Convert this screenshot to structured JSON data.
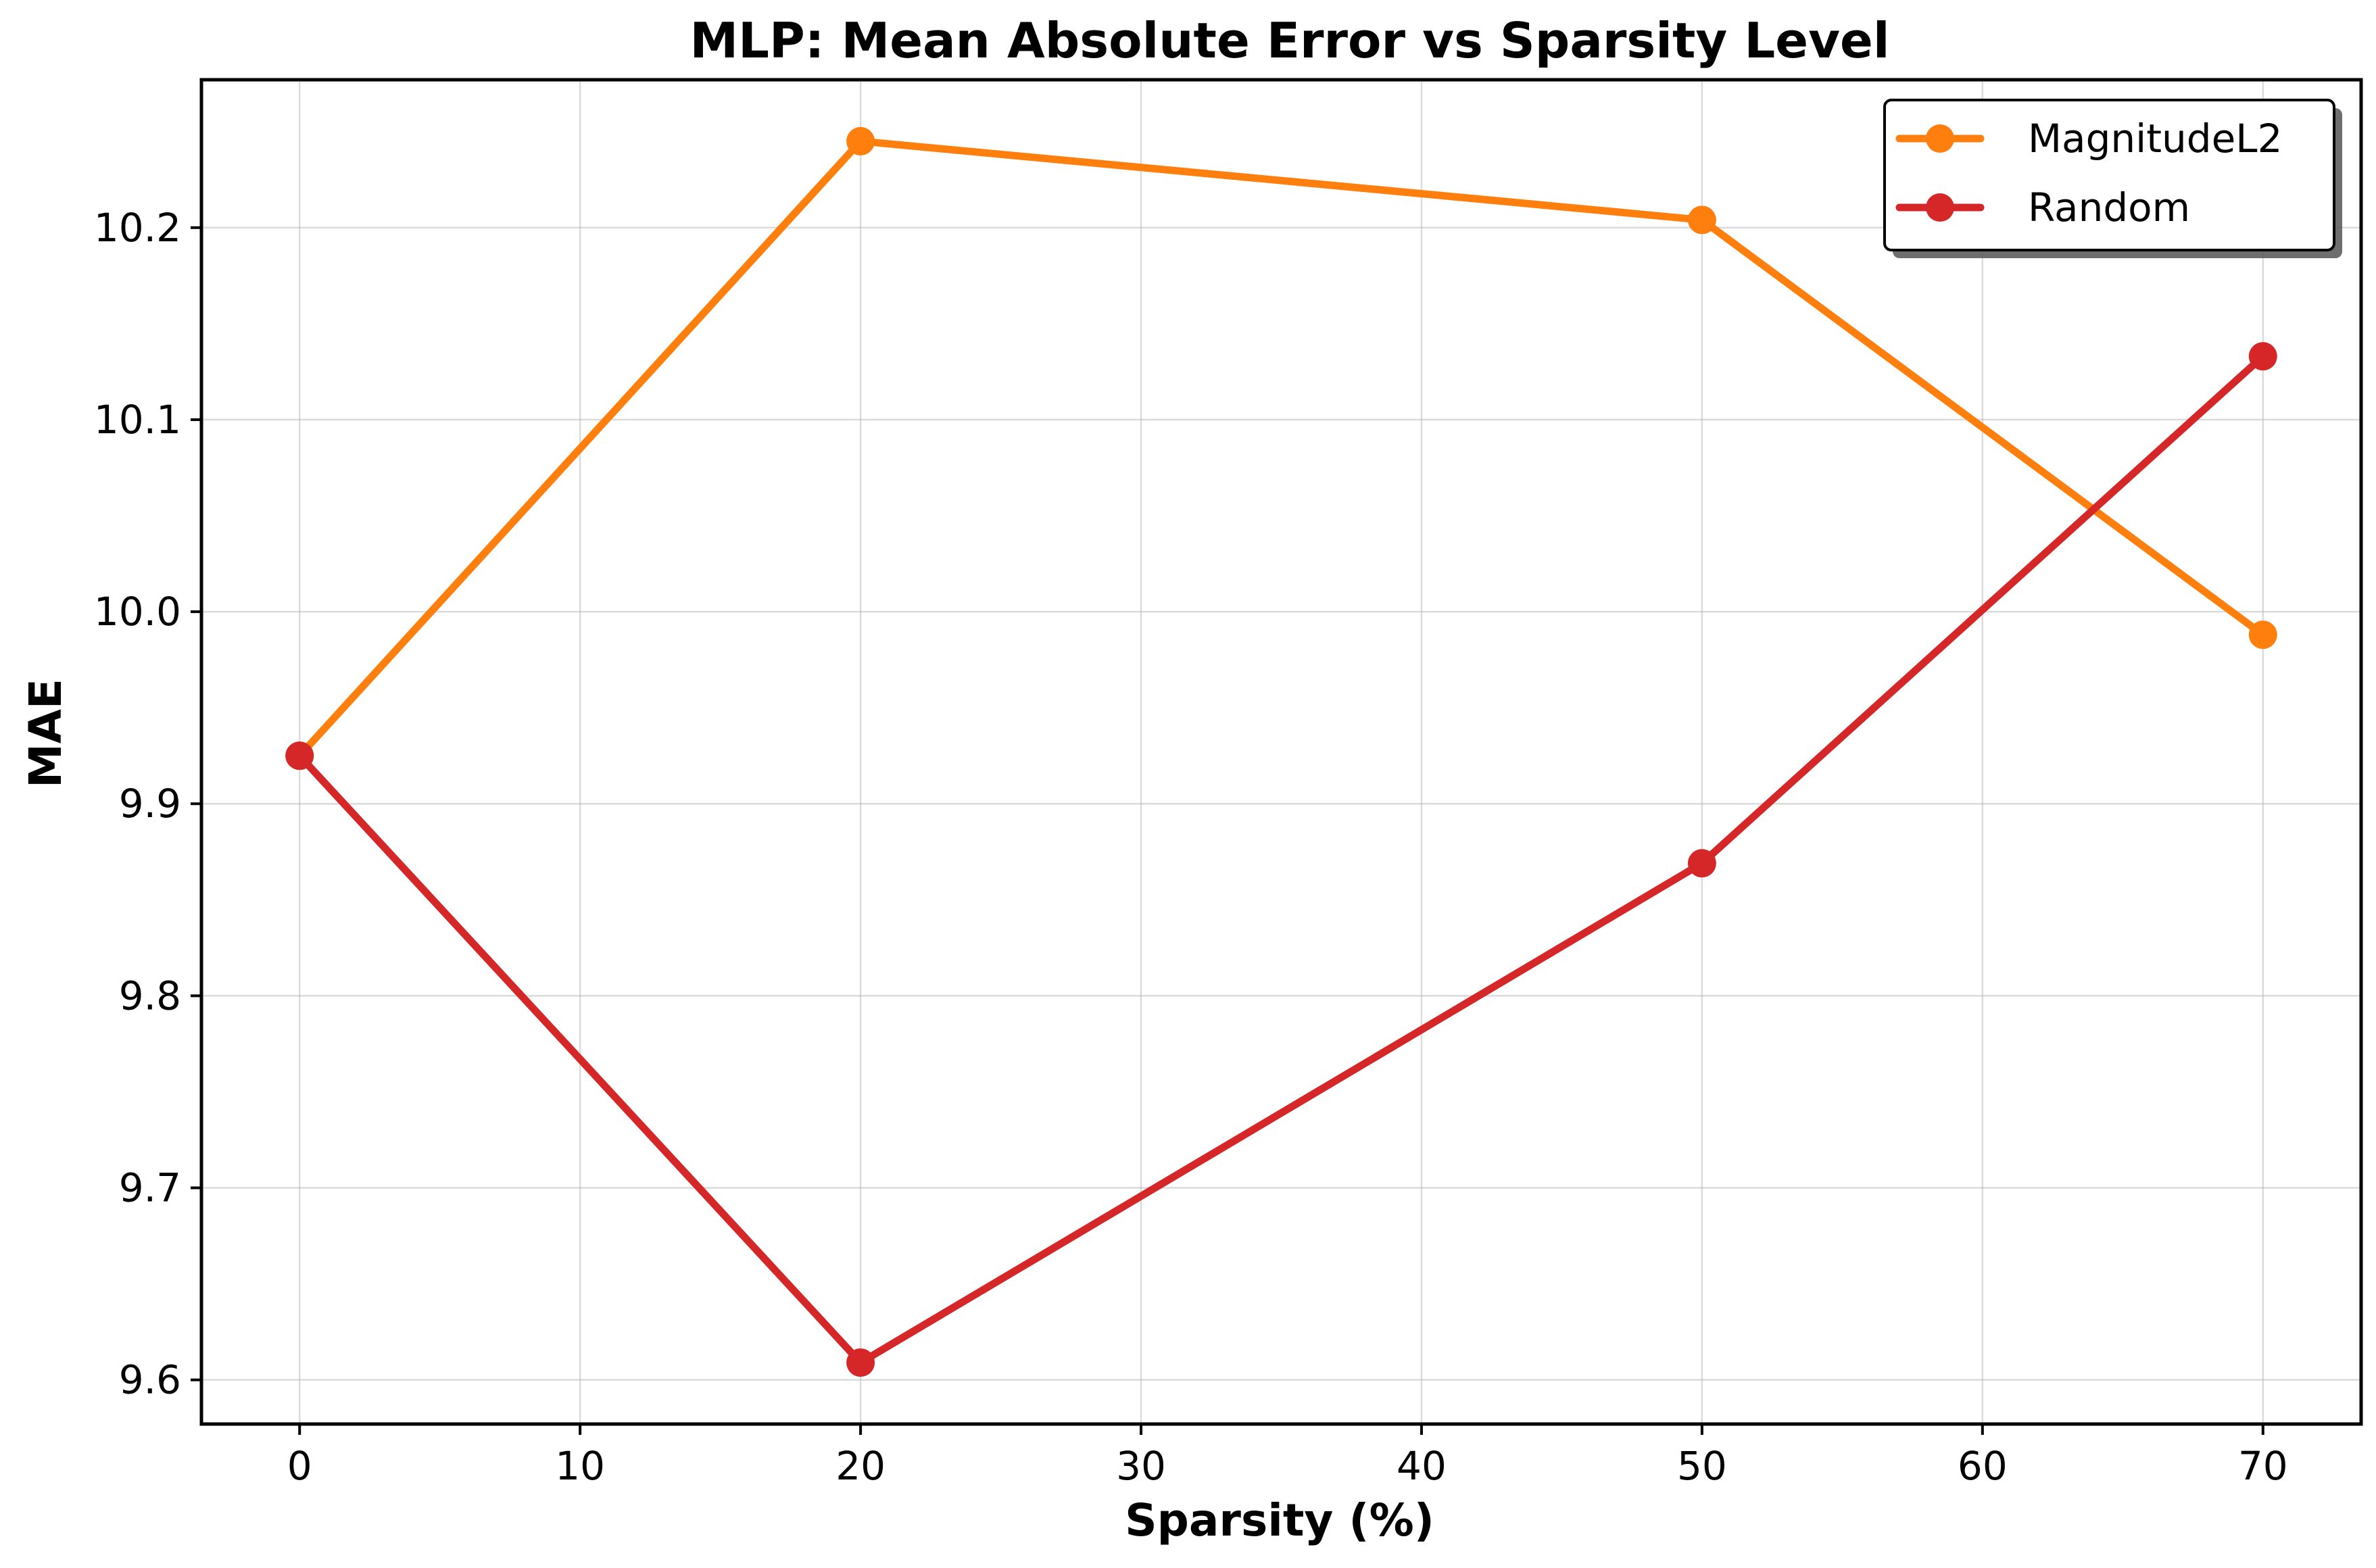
{
  "chart_data": {
    "type": "line",
    "title": "MLP: Mean Absolute Error vs Sparsity Level",
    "xlabel": "Sparsity (%)",
    "ylabel": "MAE",
    "x": [
      0,
      20,
      50,
      70
    ],
    "xlim": [
      -3.5,
      73.5
    ],
    "ylim": [
      9.577,
      10.277
    ],
    "xticks": [
      0,
      10,
      20,
      30,
      40,
      50,
      60,
      70
    ],
    "xtick_labels": [
      "0",
      "10",
      "20",
      "30",
      "40",
      "50",
      "60",
      "70"
    ],
    "yticks": [
      9.6,
      9.7,
      9.8,
      9.9,
      10.0,
      10.1,
      10.2
    ],
    "ytick_labels": [
      "9.6",
      "9.7",
      "9.8",
      "9.9",
      "10.0",
      "10.1",
      "10.2"
    ],
    "grid": true,
    "legend_position": "top-right",
    "series": [
      {
        "name": "MagnitudeL2",
        "color": "#ff7f0e",
        "values": [
          9.925,
          10.245,
          10.204,
          9.988
        ]
      },
      {
        "name": "Random",
        "color": "#d62728",
        "values": [
          9.925,
          9.609,
          9.869,
          10.133
        ]
      }
    ]
  }
}
